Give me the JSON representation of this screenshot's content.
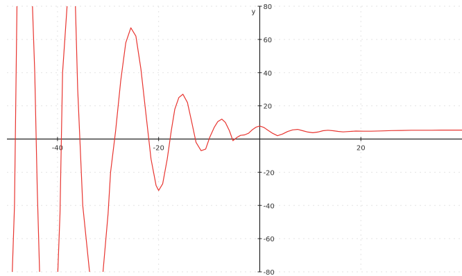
{
  "chart_data": {
    "type": "line",
    "title": "",
    "xlabel": "",
    "ylabel": "y",
    "xlim": [
      -50,
      40
    ],
    "ylim": [
      -80,
      80
    ],
    "grid": true,
    "legend": "none",
    "x_ticks": [
      -40,
      -20,
      20
    ],
    "x_tick_labels": [
      "-40",
      "-20",
      "20"
    ],
    "y_ticks": [
      -80,
      -60,
      -40,
      -20,
      20,
      40,
      60,
      80
    ],
    "y_tick_labels": [
      "-80",
      "-60",
      "-40",
      "-20",
      "20",
      "40",
      "60",
      "80"
    ],
    "series": [
      {
        "name": "",
        "color": "#e8342f",
        "x": [
          -49,
          -48.5,
          -48,
          -46,
          -45,
          -44.5,
          -44,
          -43.5,
          -42,
          -40,
          -39.5,
          -39,
          -38,
          -37.5,
          -36.5,
          -36,
          -35,
          -33.5,
          -32,
          -31,
          -30,
          -29.5,
          -28.5,
          -27.5,
          -26.5,
          -25.5,
          -24.5,
          -23.5,
          -22.5,
          -21.5,
          -20.5,
          -20,
          -19.2,
          -18.3,
          -17.5,
          -16.8,
          -16,
          -15.2,
          -14.3,
          -13.5,
          -12.6,
          -11.6,
          -10.7,
          -9.9,
          -9,
          -8.3,
          -7.5,
          -6.8,
          -6,
          -5.3,
          -4.5,
          -3.8,
          -3,
          -2.2,
          -1.5,
          -0.7,
          0,
          0.8,
          1.5,
          2.5,
          3.5,
          4.5,
          5.5,
          6.5,
          7.5,
          8.5,
          9.5,
          10.5,
          11.5,
          12.5,
          13.5,
          14.5,
          15.5,
          16.5,
          17.5,
          19,
          20.5,
          22,
          24,
          26,
          28,
          30,
          32,
          34,
          36,
          38,
          40
        ],
        "y": [
          -85,
          -40,
          85,
          85,
          85,
          40,
          -30,
          -85,
          -85,
          -85,
          -45,
          40,
          85,
          85,
          85,
          30,
          -40,
          -85,
          -85,
          -80,
          -45,
          -20,
          5,
          35,
          58,
          67,
          62,
          42,
          15,
          -12,
          -28,
          -31,
          -27,
          -12,
          5,
          18,
          25,
          27,
          22,
          11,
          -2,
          -7,
          -6,
          1,
          7,
          10.5,
          12,
          10,
          5,
          -1,
          1,
          2.2,
          2.5,
          3.5,
          5.5,
          7.2,
          7.8,
          7,
          5.5,
          3.5,
          2,
          3,
          4.5,
          5.5,
          5.8,
          5,
          4.2,
          3.8,
          4.2,
          5,
          5.3,
          5,
          4.6,
          4.3,
          4.5,
          4.8,
          4.7,
          4.7,
          4.9,
          5.1,
          5.2,
          5.3,
          5.3,
          5.3,
          5.4,
          5.4,
          5.4
        ]
      }
    ]
  }
}
